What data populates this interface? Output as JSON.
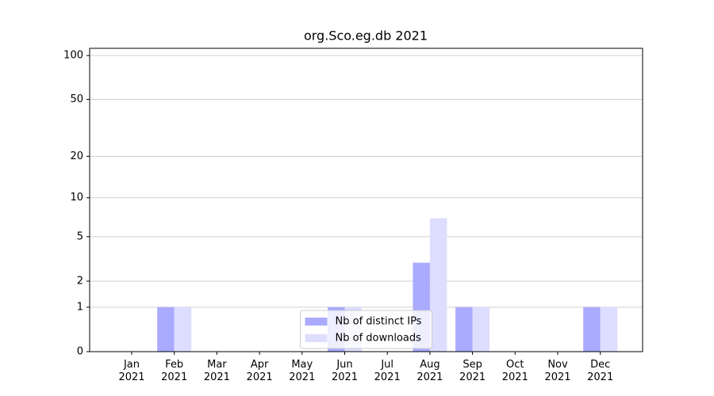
{
  "chart_data": {
    "type": "bar",
    "title": "org.Sco.eg.db 2021",
    "categories": [
      "Jan\n2021",
      "Feb\n2021",
      "Mar\n2021",
      "Apr\n2021",
      "May\n2021",
      "Jun\n2021",
      "Jul\n2021",
      "Aug\n2021",
      "Sep\n2021",
      "Oct\n2021",
      "Nov\n2021",
      "Dec\n2021"
    ],
    "series": [
      {
        "name": "Nb of distinct IPs",
        "color": "#aaaaff",
        "values": [
          0,
          1,
          0,
          0,
          0,
          1,
          0,
          3,
          1,
          0,
          0,
          1
        ]
      },
      {
        "name": "Nb of downloads",
        "color": "#ddddff",
        "values": [
          0,
          1,
          0,
          0,
          0,
          1,
          0,
          7,
          1,
          0,
          0,
          1
        ]
      }
    ],
    "yscale": "log1p",
    "ylim": [
      0,
      112
    ],
    "yticks": [
      0,
      1,
      2,
      5,
      10,
      20,
      50,
      100
    ],
    "grid": true,
    "legend": "lower center"
  }
}
